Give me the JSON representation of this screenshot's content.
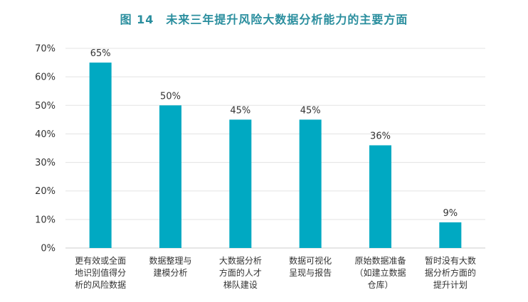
{
  "chart_data": {
    "type": "bar",
    "title": "图 14　未来三年提升风险大数据分析能力的主要方面",
    "categories": [
      [
        "更有效或全面",
        "地识别值得分",
        "析的风险数据"
      ],
      [
        "数据整理与",
        "建模分析"
      ],
      [
        "大数据分析",
        "方面的人才",
        "梯队建设"
      ],
      [
        "数据可视化",
        "呈现与报告"
      ],
      [
        "原始数据准备",
        "（如建立数据",
        "仓库）"
      ],
      [
        "暂时没有大数",
        "据分析方面的",
        "提升计划"
      ]
    ],
    "values": [
      65,
      50,
      45,
      45,
      36,
      9
    ],
    "value_labels": [
      "65%",
      "50%",
      "45%",
      "45%",
      "36%",
      "9%"
    ],
    "yticks": [
      "0%",
      "10%",
      "20%",
      "30%",
      "40%",
      "50%",
      "60%",
      "70%"
    ],
    "ylim": [
      0,
      70
    ],
    "grid": true,
    "bar_color": "#00a9c2",
    "title_color": "#2a8e9e"
  }
}
